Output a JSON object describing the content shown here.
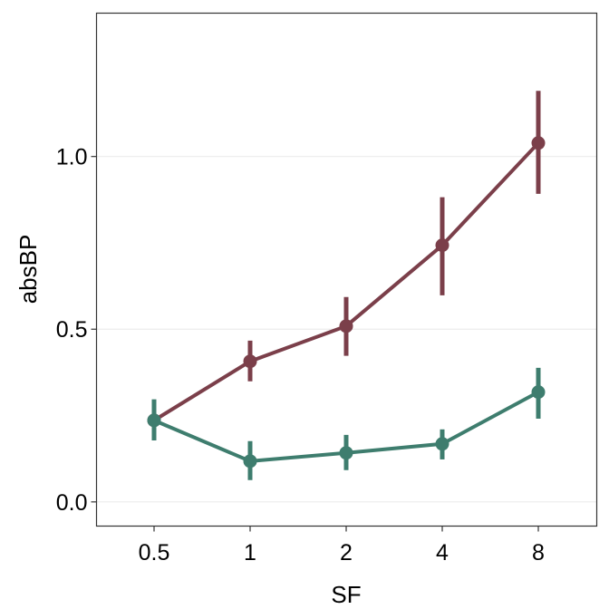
{
  "chart_data": {
    "type": "line",
    "xlabel": "SF",
    "ylabel": "absBP",
    "categories": [
      "0.5",
      "1",
      "2",
      "4",
      "8"
    ],
    "ylim": [
      -0.07,
      1.415
    ],
    "yticks": [
      "0.0",
      "0.5",
      "1.0"
    ],
    "ytick_values": [
      0,
      0.5,
      1.0
    ],
    "grid": "horizontal major",
    "legend": "none",
    "series": [
      {
        "color": "#7b3f4a",
        "values": [
          0.236,
          0.407,
          0.509,
          0.743,
          1.039
        ],
        "err_low": [
          0.18,
          0.349,
          0.423,
          0.598,
          0.892
        ],
        "err_high": [
          0.29,
          0.467,
          0.593,
          0.882,
          1.19
        ]
      },
      {
        "color": "#3e7d6e",
        "values": [
          0.236,
          0.118,
          0.142,
          0.168,
          0.318
        ],
        "err_low": [
          0.178,
          0.063,
          0.092,
          0.123,
          0.241
        ],
        "err_high": [
          0.297,
          0.176,
          0.194,
          0.21,
          0.388
        ]
      }
    ]
  }
}
